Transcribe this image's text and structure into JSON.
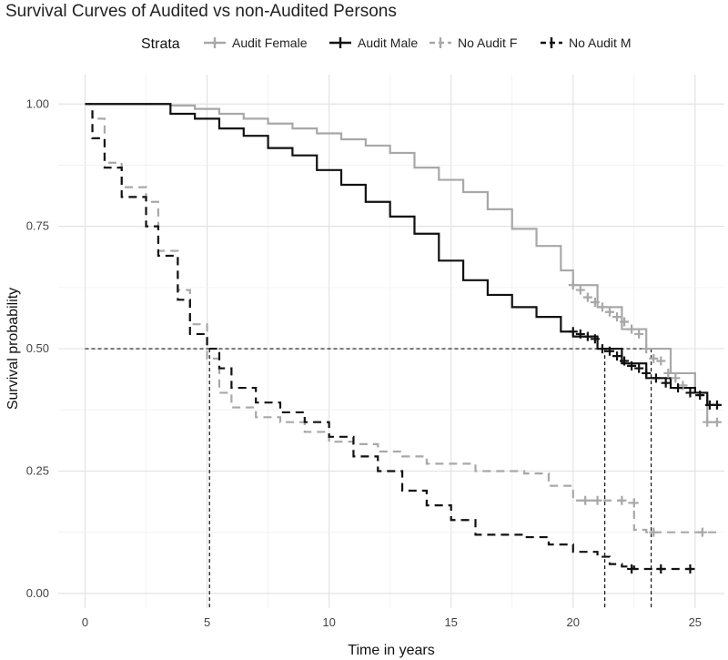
{
  "chart_data": {
    "type": "line",
    "subtype": "kaplan-meier",
    "title": "Survival Curves of Audited vs non-Audited Persons",
    "xlabel": "Time in years",
    "ylabel": "Survival probability",
    "xlim": [
      -1.1,
      26.2
    ],
    "ylim": [
      -0.03,
      1.06
    ],
    "xticks": [
      0,
      5,
      10,
      15,
      20,
      25
    ],
    "yticks": [
      0.0,
      0.25,
      0.5,
      0.75,
      1.0
    ],
    "xtick_labels": [
      "0",
      "5",
      "10",
      "15",
      "20",
      "25"
    ],
    "ytick_labels": [
      "0.00",
      "0.25",
      "0.50",
      "0.75",
      "1.00"
    ],
    "grid": true,
    "legend": {
      "title": "Strata",
      "position": "top"
    },
    "median_reference": {
      "y": 0.5,
      "x_values": [
        5.1,
        21.3,
        23.2
      ]
    },
    "series": [
      {
        "name": "Audit Female",
        "color": "#a8a8a8",
        "dash": "solid",
        "x": [
          0,
          2.5,
          3.5,
          4.5,
          5.5,
          6.5,
          7.5,
          8.5,
          9.5,
          10.5,
          11.5,
          12.5,
          13.5,
          14.5,
          15.5,
          16.5,
          17.5,
          18.5,
          19.5,
          20.0,
          21.0,
          22.0,
          23.0,
          24.0,
          25.0,
          25.5,
          26.0
        ],
        "y": [
          1.0,
          1.0,
          0.997,
          0.99,
          0.98,
          0.97,
          0.96,
          0.95,
          0.94,
          0.928,
          0.915,
          0.9,
          0.87,
          0.845,
          0.82,
          0.785,
          0.745,
          0.71,
          0.66,
          0.63,
          0.585,
          0.54,
          0.5,
          0.45,
          0.41,
          0.35,
          0.35
        ],
        "censor_x": [
          20.0,
          20.3,
          20.6,
          20.9,
          21.2,
          21.5,
          21.8,
          22.1,
          22.4,
          22.7,
          23.0,
          23.3,
          23.6,
          23.9,
          24.2,
          24.5,
          25.5,
          25.9
        ],
        "censor_y": [
          0.63,
          0.62,
          0.605,
          0.595,
          0.585,
          0.575,
          0.565,
          0.555,
          0.54,
          0.53,
          0.5,
          0.48,
          0.475,
          0.45,
          0.44,
          0.425,
          0.35,
          0.35
        ]
      },
      {
        "name": "Audit Male",
        "color": "#111111",
        "dash": "solid",
        "x": [
          0,
          2.5,
          3.5,
          4.5,
          5.5,
          6.5,
          7.5,
          8.5,
          9.5,
          10.5,
          11.5,
          12.5,
          13.5,
          14.5,
          15.5,
          16.5,
          17.5,
          18.5,
          19.5,
          20.0,
          21.0,
          22.0,
          23.0,
          24.0,
          25.0,
          25.5,
          26.0
        ],
        "y": [
          1.0,
          1.0,
          0.98,
          0.97,
          0.95,
          0.935,
          0.91,
          0.895,
          0.865,
          0.835,
          0.8,
          0.77,
          0.735,
          0.68,
          0.64,
          0.61,
          0.585,
          0.565,
          0.535,
          0.525,
          0.5,
          0.47,
          0.44,
          0.42,
          0.41,
          0.385,
          0.385
        ],
        "censor_x": [
          20.0,
          20.3,
          20.6,
          20.9,
          21.2,
          21.5,
          21.8,
          22.1,
          22.4,
          22.7,
          23.0,
          23.4,
          23.8,
          24.3,
          24.8,
          25.2,
          25.6,
          25.9
        ],
        "censor_y": [
          0.535,
          0.53,
          0.525,
          0.52,
          0.5,
          0.495,
          0.485,
          0.475,
          0.465,
          0.46,
          0.45,
          0.44,
          0.43,
          0.42,
          0.41,
          0.405,
          0.385,
          0.385
        ]
      },
      {
        "name": "No Audit F",
        "color": "#a8a8a8",
        "dash": "dashed",
        "x": [
          0,
          0.3,
          0.8,
          1.5,
          2.5,
          3.0,
          3.8,
          4.3,
          5.0,
          5.5,
          6.0,
          7.0,
          8.0,
          9.0,
          10.0,
          11.0,
          12.0,
          13.0,
          14.0,
          15.0,
          16.0,
          17.0,
          18.0,
          19.0,
          20.0,
          21.0,
          22.0,
          22.5,
          23.0,
          24.0,
          25.0,
          26.0
        ],
        "y": [
          1.0,
          0.97,
          0.88,
          0.83,
          0.8,
          0.7,
          0.62,
          0.55,
          0.48,
          0.41,
          0.38,
          0.36,
          0.35,
          0.33,
          0.31,
          0.305,
          0.29,
          0.28,
          0.265,
          0.265,
          0.25,
          0.25,
          0.245,
          0.22,
          0.19,
          0.19,
          0.185,
          0.13,
          0.125,
          0.125,
          0.125,
          0.125
        ],
        "censor_x": [
          20.5,
          21.0,
          22.0,
          22.5,
          23.3,
          25.3
        ],
        "censor_y": [
          0.19,
          0.19,
          0.19,
          0.185,
          0.125,
          0.125
        ]
      },
      {
        "name": "No Audit M",
        "color": "#111111",
        "dash": "dashed",
        "x": [
          0,
          0.3,
          0.8,
          1.5,
          2.5,
          3.0,
          3.8,
          4.3,
          5.0,
          5.5,
          6.0,
          7.0,
          8.0,
          9.0,
          10.0,
          11.0,
          12.0,
          13.0,
          14.0,
          15.0,
          16.0,
          17.0,
          18.0,
          19.0,
          20.0,
          21.0,
          21.5,
          22.0,
          22.5,
          23.0,
          24.0,
          25.0
        ],
        "y": [
          1.0,
          0.93,
          0.87,
          0.81,
          0.75,
          0.69,
          0.6,
          0.53,
          0.5,
          0.46,
          0.42,
          0.39,
          0.37,
          0.35,
          0.32,
          0.28,
          0.25,
          0.21,
          0.18,
          0.15,
          0.12,
          0.12,
          0.115,
          0.1,
          0.085,
          0.075,
          0.06,
          0.055,
          0.05,
          0.05,
          0.05,
          0.05
        ],
        "censor_x": [
          22.4,
          23.6,
          24.8
        ],
        "censor_y": [
          0.05,
          0.05,
          0.05
        ]
      }
    ]
  }
}
